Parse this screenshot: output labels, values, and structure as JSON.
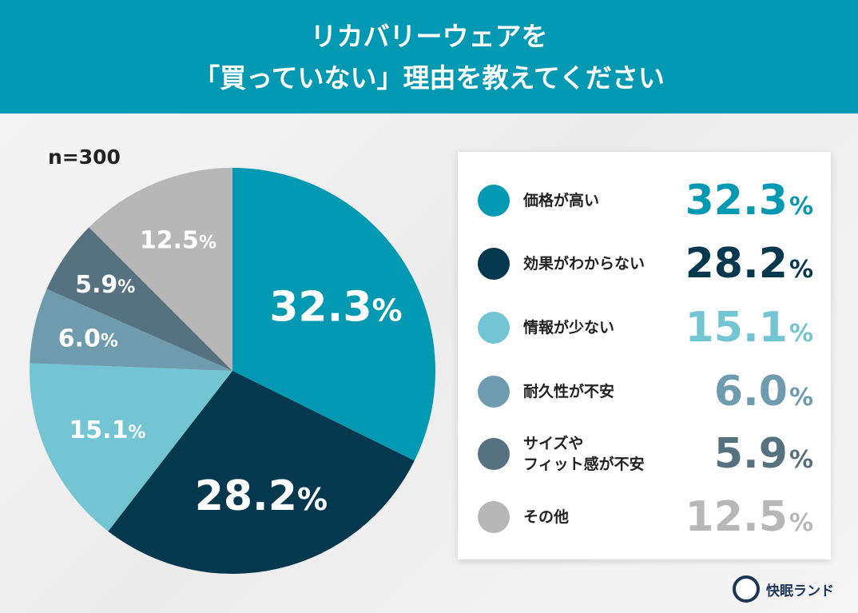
{
  "title_line1": "リカバリーウェアを",
  "title_line2": "「買っていない」理由を教えてください",
  "sample_size": "n=300",
  "brand": "快眠ランド",
  "chart_data": {
    "type": "pie",
    "start": "top, clockwise",
    "unit": "%",
    "categories": [
      "価格が高い",
      "効果がわからない",
      "情報が少ない",
      "耐久性が不安",
      "サイズや\nフィット感が不安",
      "その他"
    ],
    "values": [
      32.3,
      28.2,
      15.1,
      6.0,
      5.9,
      12.5
    ],
    "value_labels": [
      "32.3",
      "28.2",
      "15.1",
      "6.0",
      "5.9",
      "12.5"
    ],
    "colors": [
      "#0399b2",
      "#04384e",
      "#74c5d3",
      "#6e9bad",
      "#567280",
      "#b7b7b7"
    ],
    "legend_position": "right"
  }
}
